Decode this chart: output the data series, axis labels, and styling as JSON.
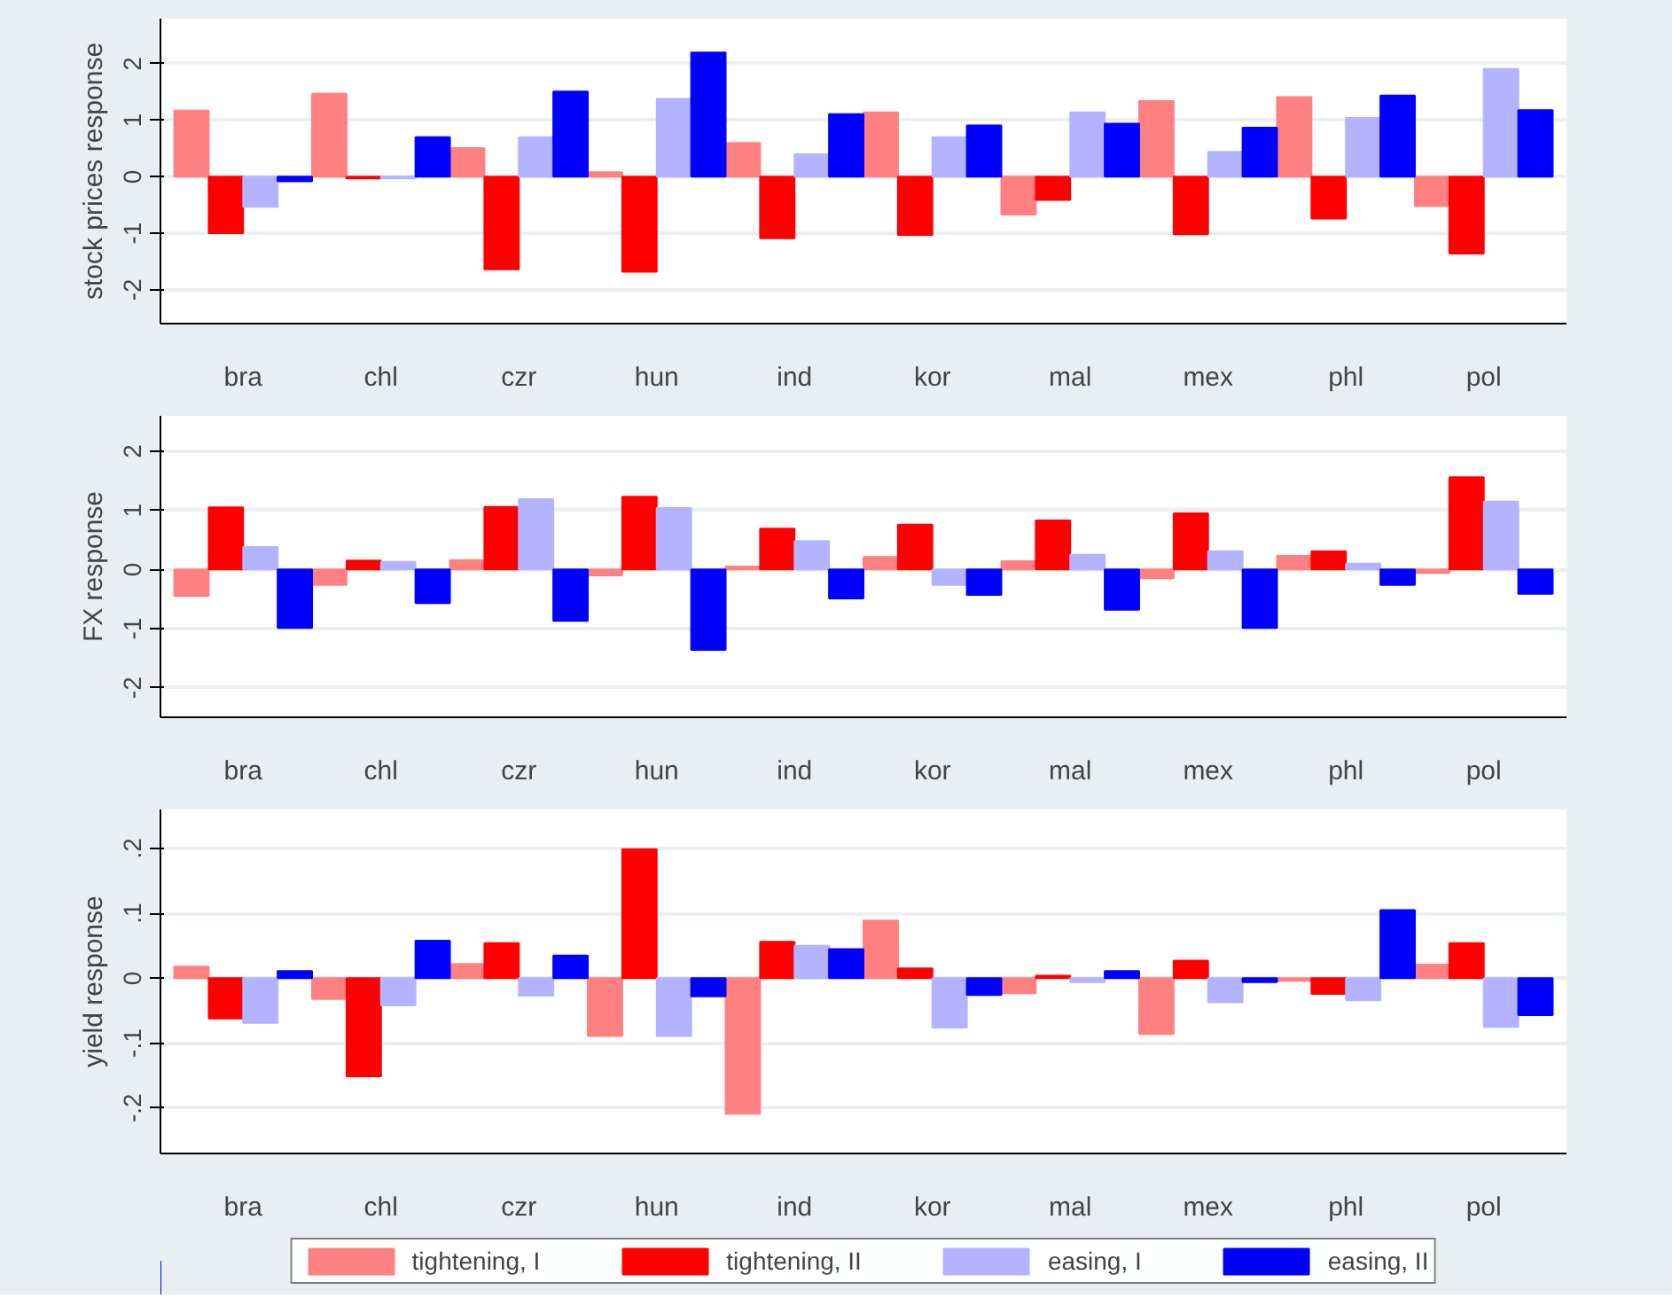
{
  "chart_data": [
    {
      "type": "bar",
      "ylabel": "stock prices response",
      "categories": [
        "bra",
        "chl",
        "czr",
        "hun",
        "ind",
        "kor",
        "mal",
        "mex",
        "phl",
        "pol"
      ],
      "ylim": [
        -2.6,
        2.8
      ],
      "yticks": [
        -2,
        -1,
        0,
        1,
        2
      ],
      "grid": "y",
      "series": [
        {
          "color": "#ff8080",
          "values": [
            1.17,
            1.47,
            0.51,
            0.08,
            0.6,
            1.14,
            -0.67,
            1.34,
            1.41,
            -0.52
          ]
        },
        {
          "color": "#ff0000",
          "values": [
            -1.0,
            -0.03,
            -1.64,
            -1.68,
            -1.09,
            -1.03,
            -0.41,
            -1.02,
            -0.74,
            -1.36
          ]
        },
        {
          "color": "#b3b3ff",
          "values": [
            -0.53,
            -0.03,
            0.7,
            1.38,
            0.4,
            0.7,
            1.14,
            0.44,
            1.04,
            1.91
          ]
        },
        {
          "color": "#0000ff",
          "values": [
            -0.08,
            0.7,
            1.51,
            2.2,
            1.11,
            0.91,
            0.94,
            0.87,
            1.44,
            1.18
          ]
        }
      ]
    },
    {
      "type": "bar",
      "ylabel": "FX response",
      "categories": [
        "bra",
        "chl",
        "czr",
        "hun",
        "ind",
        "kor",
        "mal",
        "mex",
        "phl",
        "pol"
      ],
      "ylim": [
        -2.5,
        2.6
      ],
      "yticks": [
        -2,
        -1,
        0,
        1,
        2
      ],
      "grid": "y",
      "series": [
        {
          "color": "#ff8080",
          "values": [
            -0.45,
            -0.26,
            0.16,
            -0.1,
            0.05,
            0.21,
            0.14,
            -0.15,
            0.23,
            -0.06
          ]
        },
        {
          "color": "#ff0000",
          "values": [
            1.05,
            0.15,
            1.06,
            1.23,
            0.69,
            0.76,
            0.83,
            0.95,
            0.31,
            1.56
          ]
        },
        {
          "color": "#b3b3ff",
          "values": [
            0.38,
            0.13,
            1.19,
            1.04,
            0.48,
            -0.26,
            0.25,
            0.31,
            0.1,
            1.15
          ]
        },
        {
          "color": "#0000ff",
          "values": [
            -0.99,
            -0.57,
            -0.87,
            -1.36,
            -0.49,
            -0.43,
            -0.68,
            -0.99,
            -0.26,
            -0.41
          ]
        }
      ]
    },
    {
      "type": "bar",
      "ylabel": "yield response",
      "categories": [
        "bra",
        "chl",
        "czr",
        "hun",
        "ind",
        "kor",
        "mal",
        "mex",
        "phl",
        "pol"
      ],
      "ylim": [
        -0.27,
        0.26
      ],
      "yticks": [
        {
          "value": -0.2,
          "label": "-.2"
        },
        {
          "value": -0.1,
          "label": "-.1"
        },
        0,
        {
          "value": 0.1,
          "label": ".1"
        },
        {
          "value": 0.2,
          "label": ".2"
        }
      ],
      "grid": "y",
      "legend": "bottom",
      "series": [
        {
          "name": "tightening, I",
          "color": "#ff8080",
          "values": [
            0.018,
            -0.032,
            0.022,
            -0.089,
            -0.209,
            0.089,
            -0.023,
            -0.086,
            -0.004,
            0.021
          ]
        },
        {
          "name": "tightening, II",
          "color": "#ff0000",
          "values": [
            -0.062,
            -0.151,
            0.054,
            0.199,
            0.056,
            0.015,
            0.004,
            0.027,
            -0.024,
            0.054
          ]
        },
        {
          "name": "easing, I",
          "color": "#b3b3ff",
          "values": [
            -0.069,
            -0.042,
            -0.027,
            -0.089,
            0.05,
            -0.076,
            -0.006,
            -0.037,
            -0.034,
            -0.075
          ]
        },
        {
          "name": "easing, II",
          "color": "#0000ff",
          "values": [
            0.011,
            0.058,
            0.035,
            -0.028,
            0.045,
            -0.026,
            0.011,
            -0.006,
            0.105,
            -0.057
          ]
        }
      ]
    }
  ]
}
